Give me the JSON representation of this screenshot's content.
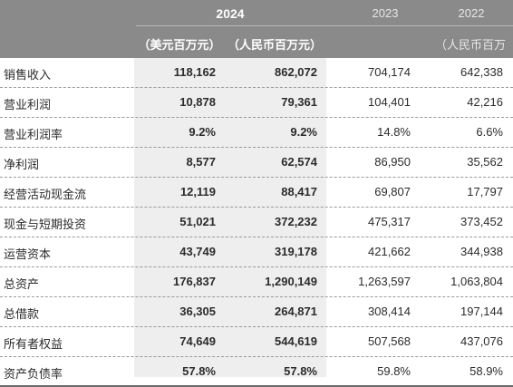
{
  "header": {
    "year_2024": "2024",
    "year_2023": "2023",
    "year_2022": "2022",
    "unit_usd": "（美元百万元）",
    "unit_rmb": "（人民币百万元）",
    "unit_rmb_prior": "（人民币百万"
  },
  "rows": [
    {
      "label": "销售收入",
      "usd": "118,162",
      "rmb": "862,072",
      "y2023": "704,174",
      "y2022": "642,338"
    },
    {
      "label": "营业利润",
      "usd": "10,878",
      "rmb": "79,361",
      "y2023": "104,401",
      "y2022": "42,216"
    },
    {
      "label": "营业利润率",
      "usd": "9.2%",
      "rmb": "9.2%",
      "y2023": "14.8%",
      "y2022": "6.6%"
    },
    {
      "label": "净利润",
      "usd": "8,577",
      "rmb": "62,574",
      "y2023": "86,950",
      "y2022": "35,562"
    },
    {
      "label": "经营活动现金流",
      "usd": "12,119",
      "rmb": "88,417",
      "y2023": "69,807",
      "y2022": "17,797"
    },
    {
      "label": "现金与短期投资",
      "usd": "51,021",
      "rmb": "372,232",
      "y2023": "475,317",
      "y2022": "373,452"
    },
    {
      "label": "运营资本",
      "usd": "43,749",
      "rmb": "319,178",
      "y2023": "421,662",
      "y2022": "344,938"
    },
    {
      "label": "总资产",
      "usd": "176,837",
      "rmb": "1,290,149",
      "y2023": "1,263,597",
      "y2022": "1,063,804"
    },
    {
      "label": "总借款",
      "usd": "36,305",
      "rmb": "264,871",
      "y2023": "308,414",
      "y2022": "197,144"
    },
    {
      "label": "所有者权益",
      "usd": "74,649",
      "rmb": "544,619",
      "y2023": "507,568",
      "y2022": "437,076"
    },
    {
      "label": "资产负债率",
      "usd": "57.8%",
      "rmb": "57.8%",
      "y2023": "59.8%",
      "y2022": "58.9%"
    }
  ]
}
